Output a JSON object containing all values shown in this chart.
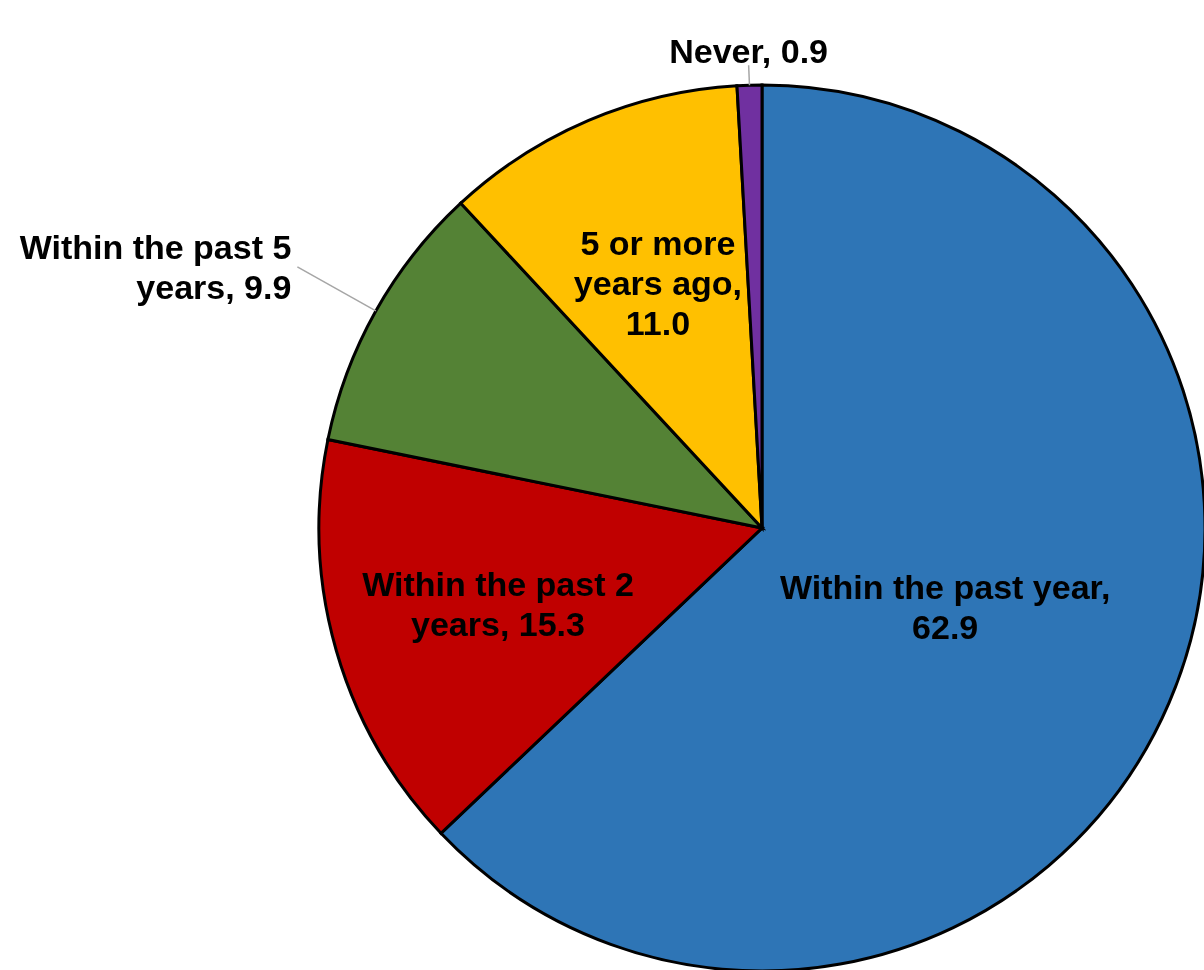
{
  "chart_data": {
    "type": "pie",
    "categories": [
      "Within the past year",
      "Within the past 2 years",
      "Within the past 5 years",
      "5 or more years ago",
      "Never"
    ],
    "values": [
      62.9,
      15.3,
      9.9,
      11.0,
      0.9
    ],
    "colors": [
      "#2e75b6",
      "#c00000",
      "#548235",
      "#ffc000",
      "#7030a0"
    ],
    "value_labels": [
      ", 62.9",
      ", 15.3",
      ", 9.9",
      ", 11.0",
      ", 0.9"
    ]
  }
}
